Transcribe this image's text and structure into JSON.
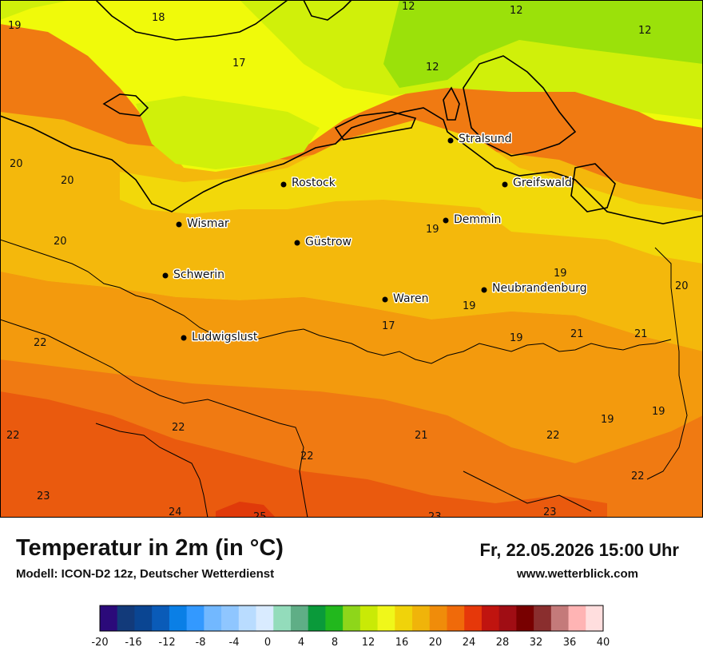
{
  "map": {
    "values": [
      {
        "text": "19"
      },
      {
        "text": "18"
      },
      {
        "text": "17"
      },
      {
        "text": "12"
      },
      {
        "text": "12"
      },
      {
        "text": "12"
      },
      {
        "text": "12"
      },
      {
        "text": "20"
      },
      {
        "text": "20"
      },
      {
        "text": "20"
      },
      {
        "text": "19"
      },
      {
        "text": "19"
      },
      {
        "text": "20"
      },
      {
        "text": "17"
      },
      {
        "text": "19"
      },
      {
        "text": "19"
      },
      {
        "text": "21"
      },
      {
        "text": "21"
      },
      {
        "text": "22"
      },
      {
        "text": "22"
      },
      {
        "text": "22"
      },
      {
        "text": "21"
      },
      {
        "text": "22"
      },
      {
        "text": "19"
      },
      {
        "text": "19"
      },
      {
        "text": "22"
      },
      {
        "text": "22"
      },
      {
        "text": "23"
      },
      {
        "text": "24"
      },
      {
        "text": "25"
      },
      {
        "text": "23"
      },
      {
        "text": "23"
      }
    ],
    "cities": [
      {
        "name": "Stralsund"
      },
      {
        "name": "Rostock"
      },
      {
        "name": "Greifswald"
      },
      {
        "name": "Demmin"
      },
      {
        "name": "Wismar"
      },
      {
        "name": "Güstrow"
      },
      {
        "name": "Schwerin"
      },
      {
        "name": "Neubrandenburg"
      },
      {
        "name": "Waren"
      },
      {
        "name": "Ludwigslust"
      }
    ]
  },
  "header": {
    "title": "Temperatur in 2m (in °C)",
    "model": "Modell: ICON-D2 12z, Deutscher Wetterdienst",
    "datetime": "Fr, 22.05.2026 15:00 Uhr",
    "site": "www.wetterblick.com"
  },
  "legend": {
    "colors": [
      "#2b0a7a",
      "#123a7a",
      "#0a4592",
      "#0a5bb8",
      "#0a7fe6",
      "#3399ff",
      "#72b8ff",
      "#8fc6ff",
      "#b9dcff",
      "#d9ebff",
      "#93dcbb",
      "#5fae86",
      "#0a9a3a",
      "#22b81d",
      "#8ed61a",
      "#c9ea06",
      "#f0f71a",
      "#f0d30a",
      "#f0b40a",
      "#f08c0a",
      "#f06a0a",
      "#e6380a",
      "#c0140f",
      "#a00d14",
      "#780000",
      "#8a2e2e",
      "#c47a7a",
      "#ffb4b4",
      "#ffdede"
    ],
    "ticks": [
      "-20",
      "-16",
      "-12",
      "-8",
      "-4",
      "0",
      "4",
      "8",
      "12",
      "16",
      "20",
      "24",
      "28",
      "32",
      "36",
      "40"
    ]
  },
  "colors": {
    "band_12": "#9be10a",
    "band_14": "#d0f00a",
    "band_16": "#f0fa0a",
    "band_18": "#f2d80a",
    "band_20": "#f4b80c",
    "band_21": "#f39a0d",
    "band_22": "#f07a12",
    "band_24": "#ea5a0e",
    "band_26": "#e03a0a"
  }
}
